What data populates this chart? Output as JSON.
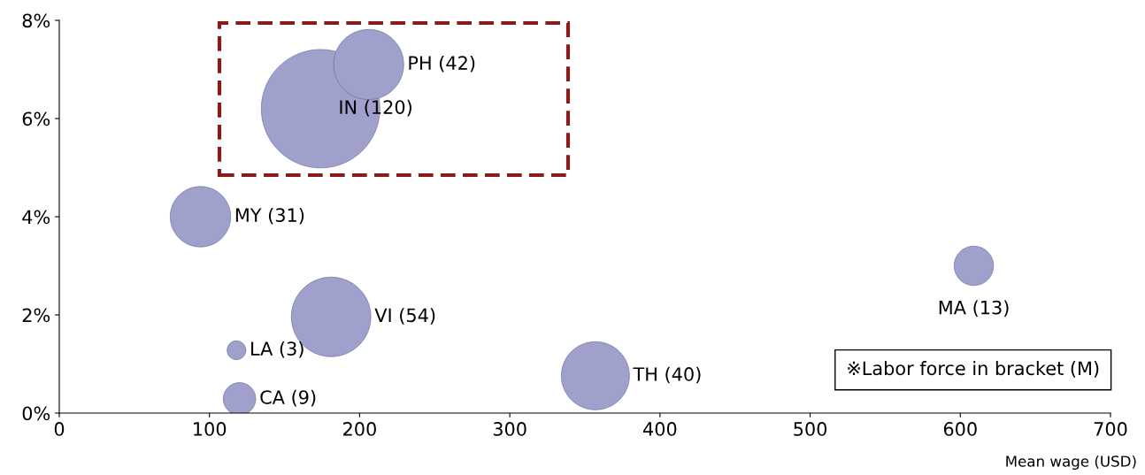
{
  "chart_data": {
    "type": "bubble",
    "xlabel": "Mean wage (USD)",
    "x": [
      174,
      206,
      94,
      181,
      118,
      120,
      357,
      609
    ],
    "values": [
      6.2,
      7.1,
      4.0,
      1.96,
      1.28,
      0.29,
      0.76,
      3.0
    ],
    "sizes": [
      1,
      0.35,
      0.26,
      0.45,
      0.025,
      0.075,
      0.33,
      0.11
    ],
    "color": "#a0a0cc",
    "xlim": [
      0,
      700
    ],
    "xticks": [
      0,
      100,
      200,
      300,
      400,
      500,
      600,
      700
    ],
    "ylim": [
      0,
      8
    ],
    "yticks": [
      {
        "value": 0,
        "label": "0%"
      },
      {
        "value": 2,
        "label": "2%"
      },
      {
        "value": 4,
        "label": "4%"
      },
      {
        "value": 6,
        "label": "6%"
      },
      {
        "value": 8,
        "label": "8%"
      }
    ],
    "grid": false,
    "annotations": [
      {
        "text": "IN (120)",
        "x": 174,
        "y": 6.2
      },
      {
        "text": "PH (42)",
        "x": 206,
        "y": 7.1
      },
      {
        "text": "MY (31)",
        "x": 94,
        "y": 4.0
      },
      {
        "text": "VI (54)",
        "x": 181,
        "y": 1.96
      },
      {
        "text": "LA (3)",
        "x": 118,
        "y": 1.28
      },
      {
        "text": "CA (9)",
        "x": 120,
        "y": 0.29
      },
      {
        "text": "TH (40)",
        "x": 357,
        "y": 0.76
      },
      {
        "text": "MA (13)",
        "x": 609,
        "y": 3.0
      },
      "※Labor force in bracket (M)"
    ]
  }
}
